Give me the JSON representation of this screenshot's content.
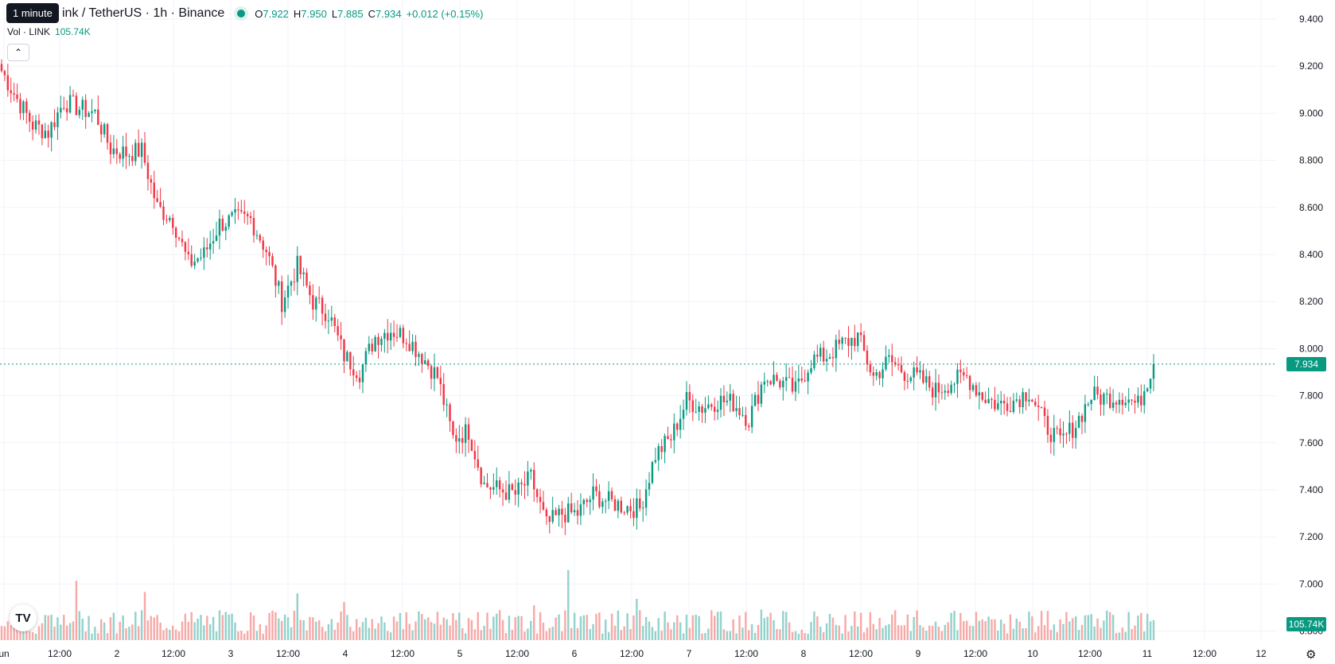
{
  "header": {
    "tooltip": "1 minute",
    "symbol_title": "ink / TetherUS · 1h · Binance",
    "open_label": "O",
    "open": "7.922",
    "high_label": "H",
    "high": "7.950",
    "low_label": "L",
    "low": "7.885",
    "close_label": "C",
    "close": "7.934",
    "change": "+0.012 (+0.15%)"
  },
  "volume_legend": {
    "label": "Vol · LINK",
    "value": "105.74K"
  },
  "colors": {
    "up": "#089981",
    "down": "#f23645",
    "up_volume": "#92d2cc",
    "down_volume": "#f7a9a7",
    "grid": "#f0f3fa"
  },
  "icons": {
    "collapse": "chevron-up-icon",
    "logo": "tradingview-logo-icon",
    "settings": "gear-icon"
  },
  "price_tag": "7.934",
  "volume_tag": "105.74K",
  "chart_data": {
    "type": "candlestick",
    "ylim": [
      6.78,
      9.44
    ],
    "y_ticks": [
      "9.400",
      "9.200",
      "9.000",
      "8.800",
      "8.600",
      "8.400",
      "8.200",
      "8.000",
      "7.800",
      "7.600",
      "7.400",
      "7.200",
      "7.000",
      "6.800"
    ],
    "x_ticks": [
      "un",
      "12:00",
      "2",
      "12:00",
      "3",
      "12:00",
      "4",
      "12:00",
      "5",
      "12:00",
      "6",
      "12:00",
      "7",
      "12:00",
      "8",
      "12:00",
      "9",
      "12:00",
      "10",
      "12:00",
      "11",
      "12:00",
      "12"
    ],
    "last_price": 7.934,
    "close_anchors": [
      [
        0,
        9.18
      ],
      [
        5,
        9.06
      ],
      [
        10,
        8.95
      ],
      [
        15,
        8.92
      ],
      [
        20,
        9.05
      ],
      [
        25,
        9.02
      ],
      [
        30,
        9.0
      ],
      [
        35,
        8.85
      ],
      [
        40,
        8.83
      ],
      [
        45,
        8.84
      ],
      [
        50,
        8.6
      ],
      [
        55,
        8.55
      ],
      [
        60,
        8.36
      ],
      [
        65,
        8.4
      ],
      [
        70,
        8.53
      ],
      [
        75,
        8.55
      ],
      [
        80,
        8.55
      ],
      [
        85,
        8.42
      ],
      [
        90,
        8.2
      ],
      [
        95,
        8.35
      ],
      [
        100,
        8.2
      ],
      [
        105,
        8.15
      ],
      [
        110,
        7.97
      ],
      [
        115,
        7.9
      ],
      [
        120,
        8.05
      ],
      [
        125,
        8.08
      ],
      [
        130,
        8.05
      ],
      [
        135,
        7.97
      ],
      [
        140,
        7.88
      ],
      [
        145,
        7.62
      ],
      [
        150,
        7.65
      ],
      [
        155,
        7.42
      ],
      [
        160,
        7.4
      ],
      [
        165,
        7.38
      ],
      [
        170,
        7.45
      ],
      [
        175,
        7.25
      ],
      [
        180,
        7.3
      ],
      [
        185,
        7.3
      ],
      [
        190,
        7.38
      ],
      [
        195,
        7.35
      ],
      [
        200,
        7.33
      ],
      [
        205,
        7.32
      ],
      [
        210,
        7.55
      ],
      [
        215,
        7.62
      ],
      [
        220,
        7.78
      ],
      [
        225,
        7.75
      ],
      [
        230,
        7.78
      ],
      [
        235,
        7.77
      ],
      [
        240,
        7.7
      ],
      [
        245,
        7.88
      ],
      [
        250,
        7.86
      ],
      [
        255,
        7.82
      ],
      [
        260,
        7.95
      ],
      [
        265,
        7.97
      ],
      [
        270,
        8.02
      ],
      [
        275,
        8.05
      ],
      [
        280,
        7.88
      ],
      [
        285,
        7.95
      ],
      [
        290,
        7.9
      ],
      [
        295,
        7.87
      ],
      [
        300,
        7.82
      ],
      [
        305,
        7.86
      ],
      [
        310,
        7.88
      ],
      [
        315,
        7.8
      ],
      [
        320,
        7.76
      ],
      [
        325,
        7.78
      ],
      [
        330,
        7.82
      ],
      [
        335,
        7.68
      ],
      [
        340,
        7.6
      ],
      [
        345,
        7.68
      ],
      [
        350,
        7.8
      ],
      [
        355,
        7.79
      ],
      [
        360,
        7.8
      ],
      [
        365,
        7.76
      ],
      [
        370,
        7.94
      ]
    ]
  }
}
